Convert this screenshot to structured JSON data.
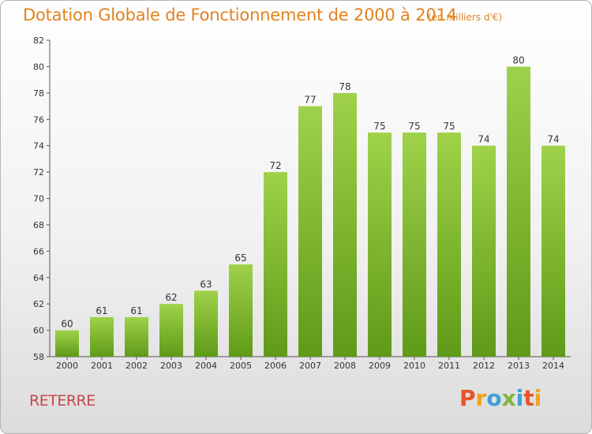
{
  "chart_data": {
    "type": "bar",
    "title": "Dotation Globale de Fonctionnement de 2000 à 2014",
    "subtitle": "(en milliers d'€)",
    "categories": [
      "2000",
      "2001",
      "2002",
      "2003",
      "2004",
      "2005",
      "2006",
      "2007",
      "2008",
      "2009",
      "2010",
      "2011",
      "2012",
      "2013",
      "2014"
    ],
    "values": [
      60,
      61,
      61,
      62,
      63,
      65,
      72,
      77,
      78,
      75,
      75,
      75,
      74,
      80,
      74
    ],
    "ylim": [
      58,
      82
    ],
    "yticks": [
      58,
      60,
      62,
      64,
      66,
      68,
      70,
      72,
      74,
      76,
      78,
      80,
      82
    ],
    "grid": false,
    "bar_color_top": "#9fd24a",
    "bar_color_bottom": "#5f9a18"
  },
  "footer": {
    "commune": "RETERRE",
    "logo_text": "Proxiti"
  },
  "colors": {
    "title": "#e2821e",
    "commune": "#c74848",
    "logo_letters": [
      "#e8532b",
      "#f0a21c",
      "#3aa0d8",
      "#7fb43a",
      "#3aa0d8",
      "#e8532b",
      "#f0a21c"
    ]
  }
}
